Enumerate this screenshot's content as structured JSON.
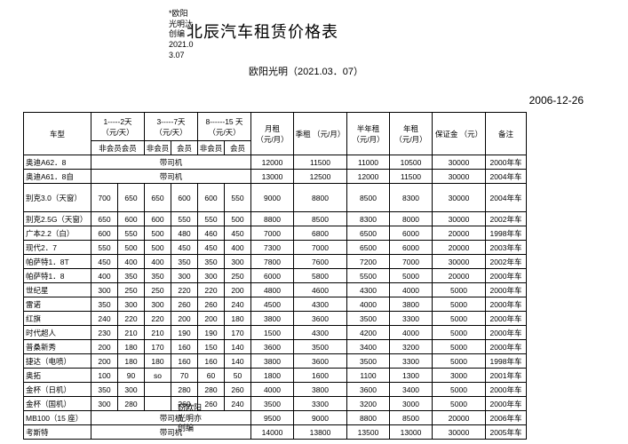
{
  "stamp_top": [
    "*欧阳",
    "光明汰",
    "创编",
    "2021.0",
    "3.07"
  ],
  "title": "北辰汽车租赁价格表",
  "subtitle": "欧阳光明（2021.03．07）",
  "date_right": "2006-12-26",
  "header": {
    "model": "车型",
    "g1": "1-----2天\n（元/天）",
    "g2": "3-----7天\n（元/天）",
    "g3": "8------15 天\n（元/天）",
    "nonmember": "非会员",
    "member": "会员",
    "nonmember_member": "非会员会员",
    "month": "月租\n（元/月）",
    "season": "季租 （元/月）",
    "half": "半年租\n（元/月）",
    "year": "年租\n（元/月）",
    "deposit": "保证金 （元）",
    "remark": "备注"
  },
  "with_driver": "带司机",
  "rows": [
    {
      "model": "奥迪A62．8",
      "driver": true,
      "m": "12000",
      "s": "11500",
      "h": "11000",
      "y": "10500",
      "d": "30000",
      "r": "2000年车"
    },
    {
      "model": "奥迪A61．8自",
      "driver": true,
      "m": "13000",
      "s": "12500",
      "h": "12000",
      "y": "11500",
      "d": "30000",
      "r": "2004年车"
    },
    {
      "model": "别克3.0（天窗）",
      "tall": true,
      "c": [
        "700",
        "650",
        "650",
        "600",
        "600",
        "550"
      ],
      "m": "9000",
      "s": "8800",
      "h": "8500",
      "y": "8300",
      "d": "30000",
      "r": "2004年车"
    },
    {
      "model": "别克2.5G（天窗）",
      "c": [
        "650",
        "600",
        "600",
        "550",
        "550",
        "500"
      ],
      "m": "8800",
      "s": "8500",
      "h": "8300",
      "y": "8000",
      "d": "30000",
      "r": "2002年车"
    },
    {
      "model": "广本2.2（白）",
      "c": [
        "600",
        "550",
        "500",
        "480",
        "460",
        "450"
      ],
      "m": "7000",
      "s": "6800",
      "h": "6500",
      "y": "6000",
      "d": "20000",
      "r": "1998年车"
    },
    {
      "model": "现代2．7",
      "c": [
        "550",
        "500",
        "500",
        "450",
        "450",
        "400"
      ],
      "m": "7300",
      "s": "7000",
      "h": "6500",
      "y": "6000",
      "d": "20000",
      "r": "2003年车"
    },
    {
      "model": "帕萨特1．8T",
      "c": [
        "450",
        "400",
        "400",
        "350",
        "350",
        "300"
      ],
      "m": "7800",
      "s": "7600",
      "h": "7200",
      "y": "7000",
      "d": "30000",
      "r": "2002年车"
    },
    {
      "model": "帕萨特1．8",
      "c": [
        "400",
        "350",
        "350",
        "300",
        "300",
        "250"
      ],
      "m": "6000",
      "s": "5800",
      "h": "5500",
      "y": "5000",
      "d": "20000",
      "r": "2000年车"
    },
    {
      "model": "世纪星",
      "c": [
        "300",
        "250",
        "250",
        "220",
        "220",
        "200"
      ],
      "m": "4800",
      "s": "4600",
      "h": "4300",
      "y": "4000",
      "d": "5000",
      "r": "2000年车"
    },
    {
      "model": "雷诺",
      "c": [
        "350",
        "300",
        "300",
        "260",
        "260",
        "240"
      ],
      "m": "4500",
      "s": "4300",
      "h": "4000",
      "y": "3800",
      "d": "5000",
      "r": "2000年车"
    },
    {
      "model": "红旗",
      "c": [
        "240",
        "220",
        "220",
        "200",
        "200",
        "180"
      ],
      "m": "3800",
      "s": "3600",
      "h": "3500",
      "y": "3300",
      "d": "5000",
      "r": "2000年车"
    },
    {
      "model": "时代超人",
      "c": [
        "230",
        "210",
        "210",
        "190",
        "190",
        "170"
      ],
      "m": "1500",
      "s": "4300",
      "h": "4200",
      "y": "4000",
      "d": "5000",
      "r": "2000年车"
    },
    {
      "model": "普桑新秀",
      "c": [
        "200",
        "180",
        "170",
        "160",
        "150",
        "140"
      ],
      "m": "3600",
      "s": "3500",
      "h": "3400",
      "y": "3200",
      "d": "5000",
      "r": "2000年车"
    },
    {
      "model": "捷达（电喷）",
      "c": [
        "200",
        "180",
        "180",
        "160",
        "160",
        "140"
      ],
      "m": "3800",
      "s": "3600",
      "h": "3500",
      "y": "3300",
      "d": "5000",
      "r": "1998年车"
    },
    {
      "model": "奥拓",
      "c": [
        "100",
        "90",
        "so",
        "70",
        "60",
        "50"
      ],
      "m": "1800",
      "s": "1600",
      "h": "1100",
      "y": "1300",
      "d": "3000",
      "r": "2001年车"
    },
    {
      "model": "金杯（日机）",
      "c": [
        "350",
        "300",
        "",
        "280",
        "280",
        "260"
      ],
      "m": "4000",
      "s": "3800",
      "h": "3600",
      "y": "3400",
      "d": "5000",
      "r": "2000年车"
    },
    {
      "model": "金杯（国机）",
      "c": [
        "300",
        "280",
        "",
        "260",
        "260",
        "240"
      ],
      "m": "3500",
      "s": "3300",
      "h": "3200",
      "y": "3000",
      "d": "5000",
      "r": "2000年车"
    },
    {
      "model": "MB100（15 座）",
      "driver": true,
      "m": "9500",
      "s": "9000",
      "h": "8800",
      "y": "8500",
      "d": "20000",
      "r": "2006年车"
    },
    {
      "model": "考斯特",
      "driver": true,
      "m": "14000",
      "s": "13800",
      "h": "13500",
      "y": "13000",
      "d": "30000",
      "r": "2005年车"
    }
  ],
  "stamp_bottom": [
    "窃欧阳",
    "光明亦",
    "创编"
  ]
}
